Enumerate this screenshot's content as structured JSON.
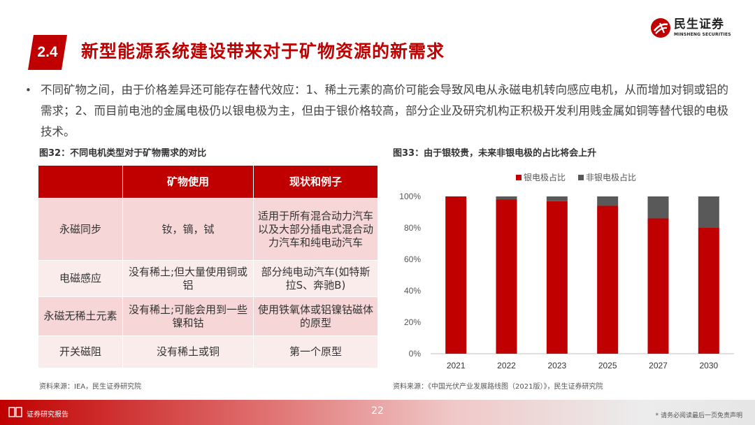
{
  "brand": {
    "name_cn": "民生证券",
    "name_en": "MINSHENG SECURITIES"
  },
  "section": {
    "number": "2.4",
    "title": "新型能源系统建设带来对于矿物资源的新需求"
  },
  "bullet": {
    "marker": "•",
    "text": "不同矿物之间，由于价格差异还可能存在替代效应：1、稀土元素的高价可能会导致风电从永磁电机转向感应电机，从而增加对铜或铝的需求；2、而目前电池的金属电极仍以银电极为主，但由于银价格较高，部分企业及研究机构正积极开发利用贱金属如铜等替代银的电极技术。"
  },
  "figure_left": {
    "caption": "图32：不同电机类型对于矿物需求的对比",
    "table": {
      "headers": [
        "",
        "矿物使用",
        "现状和例子"
      ],
      "rows": [
        [
          "永磁同步",
          "钕，镝，铽",
          "适用于所有混合动力汽车以及大部分插电式混合动力汽车和纯电动汽车"
        ],
        [
          "电磁感应",
          "没有稀土;但大量使用铜或铝",
          "部分纯电动汽车(如特斯拉S、奔驰B)"
        ],
        [
          "永磁无稀土元素",
          "没有稀土;可能会用到一些镍和钴",
          "使用铁氧体或铝镍钴磁体的原型"
        ],
        [
          "开关磁阻",
          "没有稀土或铜",
          "第一个原型"
        ]
      ]
    },
    "source": "资料来源：IEA，民生证券研究院"
  },
  "figure_right": {
    "caption": "图33：由于银较贵，未来非银电极的占比将会上升",
    "source": "资料来源：《中国光伏产业发展路线图（2021版）》，民生证券研究院"
  },
  "chart_data": {
    "type": "bar",
    "stacked": true,
    "categories": [
      "2021",
      "2022",
      "2023",
      "2025",
      "2027",
      "2030"
    ],
    "series": [
      {
        "name": "银电极占比",
        "color": "#c00000",
        "values": [
          100,
          98,
          97,
          94,
          86,
          80
        ]
      },
      {
        "name": "非银电极占比",
        "color": "#595959",
        "values": [
          0,
          2,
          3,
          6,
          14,
          20
        ]
      }
    ],
    "ylim": [
      0,
      100
    ],
    "yticks": [
      "0%",
      "20%",
      "40%",
      "60%",
      "80%",
      "100%"
    ],
    "legend_position": "top-right",
    "grid": false
  },
  "footer": {
    "label": "证券研究报告",
    "page": "22",
    "disclaimer": "* 请务必阅读最后一页免责声明"
  }
}
